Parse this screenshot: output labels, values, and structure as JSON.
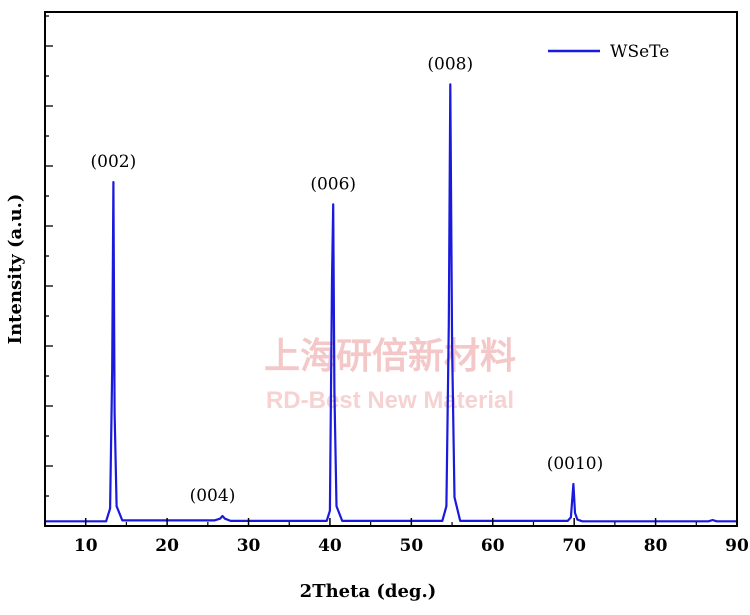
{
  "chart_data": {
    "type": "line",
    "xlabel": "2Theta (deg.)",
    "ylabel": "Intensity (a.u.)",
    "xlim": [
      5,
      90
    ],
    "ylim": [
      0,
      100
    ],
    "x_ticks": [
      10,
      20,
      30,
      40,
      50,
      60,
      70,
      80,
      90
    ],
    "y_tick_labels_shown": false,
    "grid": false,
    "legend_position": "top-right",
    "color": "#1a1adc",
    "series": [
      {
        "name": "WSeTe",
        "x": [
          5,
          12.5,
          13.0,
          13.25,
          13.4,
          13.55,
          13.8,
          14.5,
          25.8,
          26.5,
          26.8,
          27.1,
          27.8,
          39.6,
          40.0,
          40.25,
          40.4,
          40.55,
          40.8,
          41.5,
          53.8,
          54.3,
          54.6,
          54.78,
          55.0,
          55.3,
          56.0,
          69.2,
          69.6,
          69.9,
          70.1,
          70.4,
          71.0,
          86.5,
          87.0,
          87.5,
          90
        ],
        "y": [
          0.6,
          0.6,
          3.5,
          35,
          77,
          25,
          4,
          0.8,
          0.8,
          1.2,
          1.8,
          1.2,
          0.7,
          0.7,
          3,
          55,
          72,
          30,
          4,
          0.7,
          0.7,
          4,
          45,
          99,
          40,
          6,
          0.7,
          0.7,
          1.5,
          9,
          2.5,
          1,
          0.6,
          0.6,
          0.9,
          0.6,
          0.6
        ]
      }
    ],
    "annotations": [
      {
        "text": "(002)",
        "x": 13.4,
        "y": 77
      },
      {
        "text": "(004)",
        "x": 26.8,
        "y": 1.8
      },
      {
        "text": "(006)",
        "x": 40.4,
        "y": 72
      },
      {
        "text": "(008)",
        "x": 54.78,
        "y": 99
      },
      {
        "text": "(0010)",
        "x": 70.1,
        "y": 9
      }
    ]
  },
  "watermark": {
    "line1": "上海研倍新材料",
    "line2": "RD-Best New Material"
  }
}
